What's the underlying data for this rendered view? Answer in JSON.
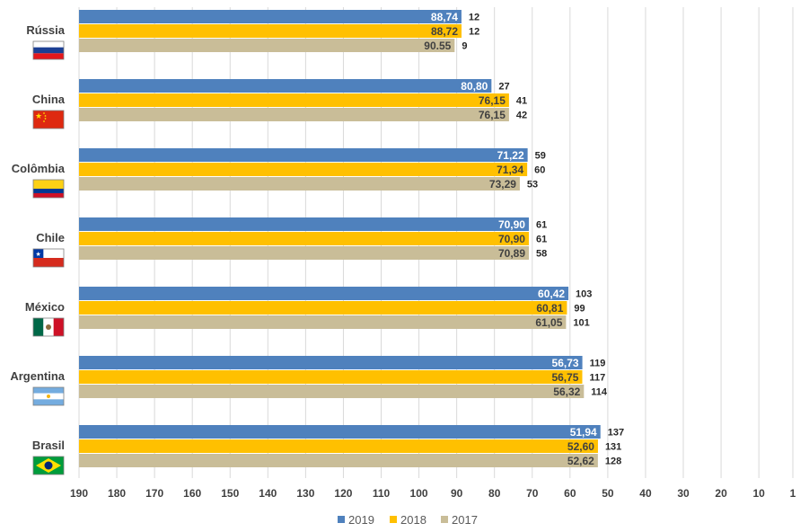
{
  "chart_data": {
    "type": "bar",
    "orientation": "horizontal",
    "x_axis_reversed": true,
    "xlim": [
      190,
      1
    ],
    "x_ticks": [
      "190",
      "180",
      "170",
      "160",
      "150",
      "140",
      "130",
      "120",
      "110",
      "100",
      "90",
      "80",
      "70",
      "60",
      "50",
      "40",
      "30",
      "20",
      "10",
      "1"
    ],
    "grid": "vertical",
    "legend_placement": "bottom",
    "categories": [
      "Rússia",
      "China",
      "Colômbia",
      "Chile",
      "México",
      "Argentina",
      "Brasil"
    ],
    "flag_icons": [
      "flag-russia-icon",
      "flag-china-icon",
      "flag-colombia-icon",
      "flag-chile-icon",
      "flag-mexico-icon",
      "flag-argentina-icon",
      "flag-brazil-icon"
    ],
    "series": [
      {
        "name": "2019",
        "color": "#4F81BD",
        "label_color": "#ffffff",
        "values": [
          88.74,
          80.8,
          71.22,
          70.9,
          60.42,
          56.73,
          51.94
        ],
        "value_labels": [
          "88,74",
          "80,80",
          "71,22",
          "70,90",
          "60,42",
          "56,73",
          "51,94"
        ],
        "ranks": [
          "12",
          "27",
          "59",
          "61",
          "103",
          "119",
          "137"
        ]
      },
      {
        "name": "2018",
        "color": "#FFC000",
        "label_color": "#404040",
        "values": [
          88.72,
          76.15,
          71.34,
          70.9,
          60.81,
          56.75,
          52.6
        ],
        "value_labels": [
          "88,72",
          "76,15",
          "71,34",
          "70,90",
          "60,81",
          "56,75",
          "52,60"
        ],
        "ranks": [
          "12",
          "41",
          "60",
          "61",
          "99",
          "117",
          "131"
        ]
      },
      {
        "name": "2017",
        "color": "#C9BD98",
        "label_color": "#404040",
        "values": [
          90.55,
          76.15,
          73.29,
          70.89,
          61.05,
          56.32,
          52.62
        ],
        "value_labels": [
          "90.55",
          "76,15",
          "73,29",
          "70,89",
          "61,05",
          "56,32",
          "52,62"
        ],
        "ranks": [
          "9",
          "42",
          "53",
          "58",
          "101",
          "114",
          "128"
        ]
      }
    ]
  }
}
